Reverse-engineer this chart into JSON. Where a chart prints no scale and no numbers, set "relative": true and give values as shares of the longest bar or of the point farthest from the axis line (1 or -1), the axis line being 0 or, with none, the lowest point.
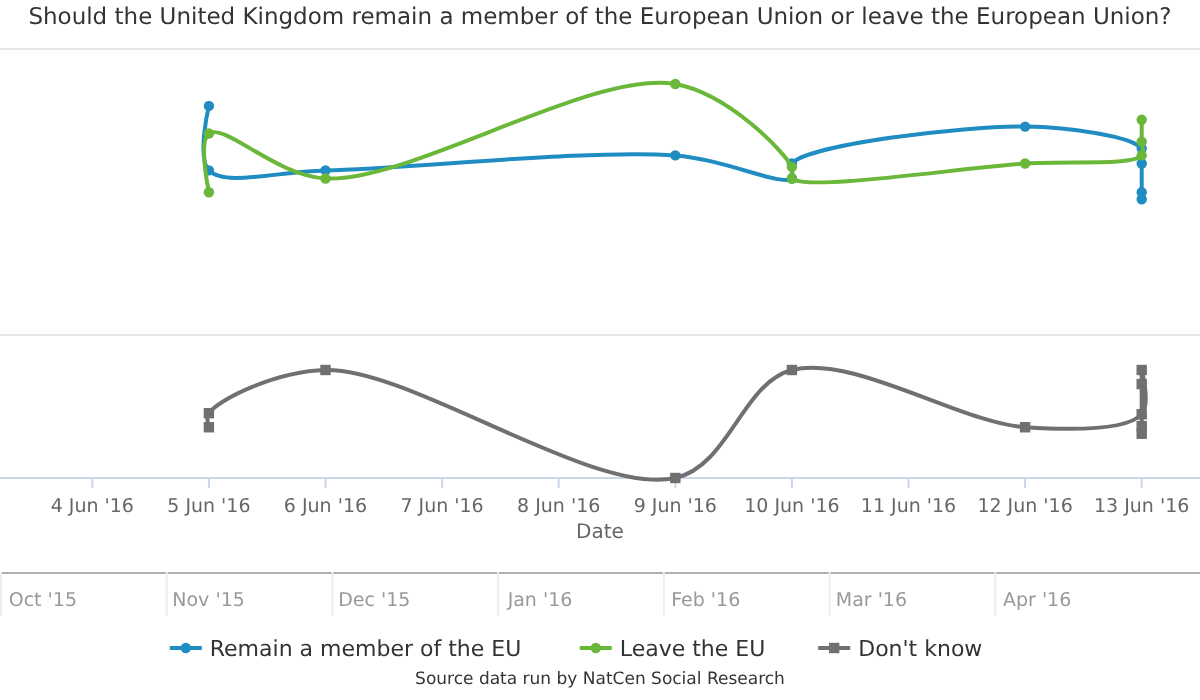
{
  "chart_data": [
    {
      "type": "line",
      "title": "Should the United Kingdom remain a member of the European Union or leave the European Union?",
      "relative": true,
      "xlim": [
        "2016-06-03T05:00",
        "2016-06-13T12:00"
      ],
      "tick_labels": false,
      "legend": "bottom",
      "series": [
        {
          "name": "Remain a member of the EU",
          "color": "#1f8dc1",
          "marker": "circle",
          "x": [
            "2016-06-05",
            "2016-06-05",
            "2016-06-06",
            "2016-06-09",
            "2016-06-10",
            "2016-06-10",
            "2016-06-12",
            "2016-06-13",
            "2016-06-13",
            "2016-06-13",
            "2016-06-13"
          ],
          "values": [
            0.81,
            0.25,
            0.25,
            0.38,
            0.18,
            0.31,
            0.63,
            0.44,
            0.31,
            0.06,
            0
          ]
        },
        {
          "name": "Leave the EU",
          "color": "#6ab739",
          "marker": "circle",
          "x": [
            "2016-06-05",
            "2016-06-05",
            "2016-06-06",
            "2016-06-09",
            "2016-06-10",
            "2016-06-10",
            "2016-06-12",
            "2016-06-13",
            "2016-06-13",
            "2016-06-13"
          ],
          "values": [
            0.06,
            0.57,
            0.18,
            1,
            0.28,
            0.18,
            0.31,
            0.38,
            0.5,
            0.69
          ]
        }
      ]
    },
    {
      "type": "line",
      "relative": true,
      "xlabel": "Date",
      "xlim": [
        "2016-06-03T05:00",
        "2016-06-13T12:00"
      ],
      "xticks": [
        {
          "value": "2016-06-04",
          "label": "4 Jun '16"
        },
        {
          "value": "2016-06-05",
          "label": "5 Jun '16"
        },
        {
          "value": "2016-06-06",
          "label": "6 Jun '16"
        },
        {
          "value": "2016-06-07",
          "label": "7 Jun '16"
        },
        {
          "value": "2016-06-08",
          "label": "8 Jun '16"
        },
        {
          "value": "2016-06-09",
          "label": "9 Jun '16"
        },
        {
          "value": "2016-06-10",
          "label": "10 Jun '16"
        },
        {
          "value": "2016-06-11",
          "label": "11 Jun '16"
        },
        {
          "value": "2016-06-12",
          "label": "12 Jun '16"
        },
        {
          "value": "2016-06-13",
          "label": "13 Jun '16"
        }
      ],
      "tick_labels": "x",
      "legend": "bottom",
      "series": [
        {
          "name": "Don't know",
          "color": "#707070",
          "marker": "square",
          "x": [
            "2016-06-05",
            "2016-06-05",
            "2016-06-06",
            "2016-06-09",
            "2016-06-10",
            "2016-06-12",
            "2016-06-13",
            "2016-06-13",
            "2016-06-13",
            "2016-06-13",
            "2016-06-13"
          ],
          "values": [
            0.47,
            0.6,
            1,
            0,
            1,
            0.47,
            0.59,
            1,
            0.87,
            0.48,
            0.41
          ]
        }
      ]
    },
    {
      "type": "other",
      "categories": [
        "Oct '15",
        "Nov '15",
        "Dec '15",
        "Jan '16",
        "Feb '16",
        "Mar '16",
        "Apr '16"
      ],
      "annotations": [
        "Source data run by NatCen Social Research"
      ]
    }
  ]
}
